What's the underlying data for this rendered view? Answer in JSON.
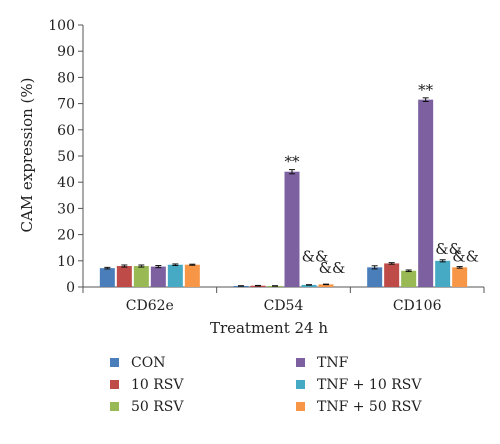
{
  "chart_data": {
    "type": "bar",
    "title": "",
    "xlabel": "Treatment 24 h",
    "ylabel": "CAM expression (%)",
    "ylim": [
      0,
      100
    ],
    "yticks": [
      "0",
      "10",
      "20",
      "30",
      "40",
      "50",
      "60",
      "70",
      "80",
      "90",
      "100"
    ],
    "grid": false,
    "legend_position": "bottom",
    "categories": [
      "CD62e",
      "CD54",
      "CD106"
    ],
    "series": [
      {
        "name": "CON",
        "color": "#4a7ebb",
        "values": [
          7.2,
          0.4,
          7.5
        ],
        "errors": [
          0.3,
          0.1,
          0.6
        ],
        "annotations": [
          "",
          "",
          ""
        ]
      },
      {
        "name": "10 RSV",
        "color": "#be4b48",
        "values": [
          8.0,
          0.5,
          9.0
        ],
        "errors": [
          0.4,
          0.1,
          0.3
        ],
        "annotations": [
          "",
          "",
          ""
        ]
      },
      {
        "name": "50 RSV",
        "color": "#98b954",
        "values": [
          8.0,
          0.4,
          6.2
        ],
        "errors": [
          0.4,
          0.1,
          0.3
        ],
        "annotations": [
          "",
          "",
          ""
        ]
      },
      {
        "name": "TNF",
        "color": "#7d60a0",
        "values": [
          7.8,
          44.0,
          71.5
        ],
        "errors": [
          0.4,
          0.8,
          0.7
        ],
        "annotations": [
          "",
          "**",
          "**"
        ]
      },
      {
        "name": "TNF + 10 RSV",
        "color": "#46aac5",
        "values": [
          8.5,
          0.8,
          10.0
        ],
        "errors": [
          0.3,
          0.1,
          0.4
        ],
        "annotations": [
          "",
          "&&",
          "&&"
        ]
      },
      {
        "name": "TNF + 50 RSV",
        "color": "#f79646",
        "values": [
          8.5,
          1.0,
          7.5
        ],
        "errors": [
          0.2,
          0.1,
          0.3
        ],
        "annotations": [
          "",
          "&&",
          "&&"
        ]
      }
    ]
  }
}
